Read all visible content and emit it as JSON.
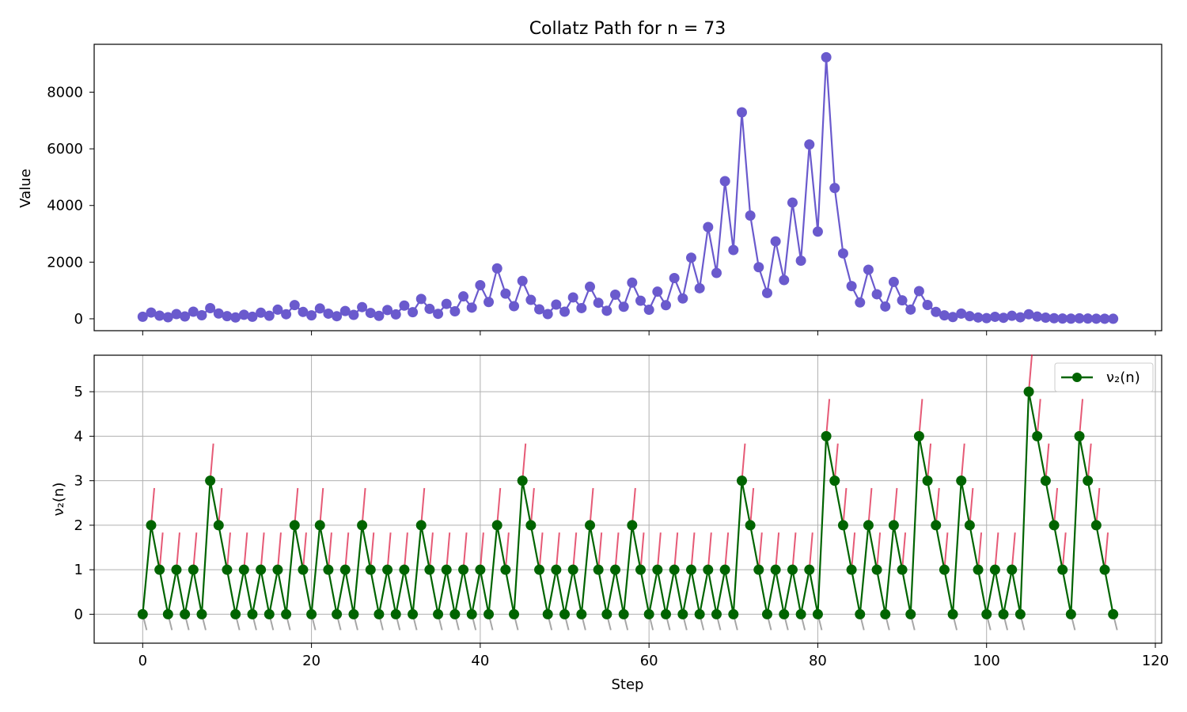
{
  "chart_data": [
    {
      "type": "line",
      "title": "Collatz Path for n = 73",
      "xlabel": "",
      "ylabel": "Value",
      "xlim": [
        -5.75,
        120.75
      ],
      "ylim": [
        -420,
        9690
      ],
      "x_ticks": [
        0,
        20,
        40,
        60,
        80,
        100,
        120
      ],
      "y_ticks": [
        0,
        2000,
        4000,
        6000,
        8000
      ],
      "y_tick_labels": [
        "0",
        "2000",
        "4000",
        "6000",
        "8000"
      ],
      "grid": false,
      "series": [
        {
          "color": "#6a5acd",
          "marker": "circle",
          "values": [
            73,
            220,
            110,
            55,
            166,
            83,
            250,
            125,
            376,
            188,
            94,
            47,
            142,
            71,
            214,
            107,
            322,
            161,
            484,
            242,
            121,
            364,
            182,
            91,
            274,
            137,
            412,
            206,
            103,
            310,
            155,
            466,
            233,
            700,
            350,
            175,
            526,
            263,
            790,
            395,
            1186,
            593,
            1780,
            890,
            445,
            1336,
            668,
            334,
            167,
            502,
            251,
            754,
            377,
            1132,
            566,
            283,
            850,
            425,
            1276,
            638,
            319,
            958,
            479,
            1438,
            719,
            2158,
            1079,
            3238,
            1619,
            4858,
            2429,
            7288,
            3644,
            1822,
            911,
            2734,
            1367,
            4102,
            2051,
            6154,
            3077,
            9232,
            4616,
            2308,
            1154,
            577,
            1732,
            866,
            433,
            1300,
            650,
            325,
            976,
            488,
            244,
            122,
            61,
            184,
            92,
            46,
            23,
            70,
            35,
            106,
            53,
            160,
            80,
            40,
            20,
            10,
            5,
            16,
            8,
            4,
            2,
            1
          ]
        }
      ]
    },
    {
      "type": "line",
      "title": "",
      "xlabel": "Step",
      "ylabel": "ν₂(n)",
      "xlim": [
        -5.75,
        120.75
      ],
      "ylim": [
        -0.65,
        5.82
      ],
      "x_ticks": [
        0,
        20,
        40,
        60,
        80,
        100,
        120
      ],
      "x_tick_labels": [
        "0",
        "20",
        "40",
        "60",
        "80",
        "100",
        "120"
      ],
      "y_ticks": [
        0,
        1,
        2,
        3,
        4,
        5
      ],
      "y_tick_labels": [
        "0",
        "1",
        "2",
        "3",
        "4",
        "5"
      ],
      "grid": true,
      "legend_position": "upper right",
      "series": [
        {
          "name": "ν₂(n)",
          "color": "#006400",
          "marker": "circle",
          "values": [
            0,
            2,
            1,
            0,
            1,
            0,
            1,
            0,
            3,
            2,
            1,
            0,
            1,
            0,
            1,
            0,
            1,
            0,
            2,
            1,
            0,
            2,
            1,
            0,
            1,
            0,
            2,
            1,
            0,
            1,
            0,
            1,
            0,
            2,
            1,
            0,
            1,
            0,
            1,
            0,
            1,
            0,
            2,
            1,
            0,
            3,
            2,
            1,
            0,
            1,
            0,
            1,
            0,
            2,
            1,
            0,
            1,
            0,
            2,
            1,
            0,
            1,
            0,
            1,
            0,
            1,
            0,
            1,
            0,
            1,
            0,
            3,
            2,
            1,
            0,
            1,
            0,
            1,
            0,
            1,
            0,
            4,
            3,
            2,
            1,
            0,
            2,
            1,
            0,
            2,
            1,
            0,
            4,
            3,
            2,
            1,
            0,
            3,
            2,
            1,
            0,
            1,
            0,
            1,
            0,
            5,
            4,
            3,
            2,
            1,
            0,
            4,
            3,
            2,
            1,
            0
          ]
        }
      ],
      "up_tick_color": "#dc143c",
      "down_tick_color": "#808080"
    }
  ]
}
